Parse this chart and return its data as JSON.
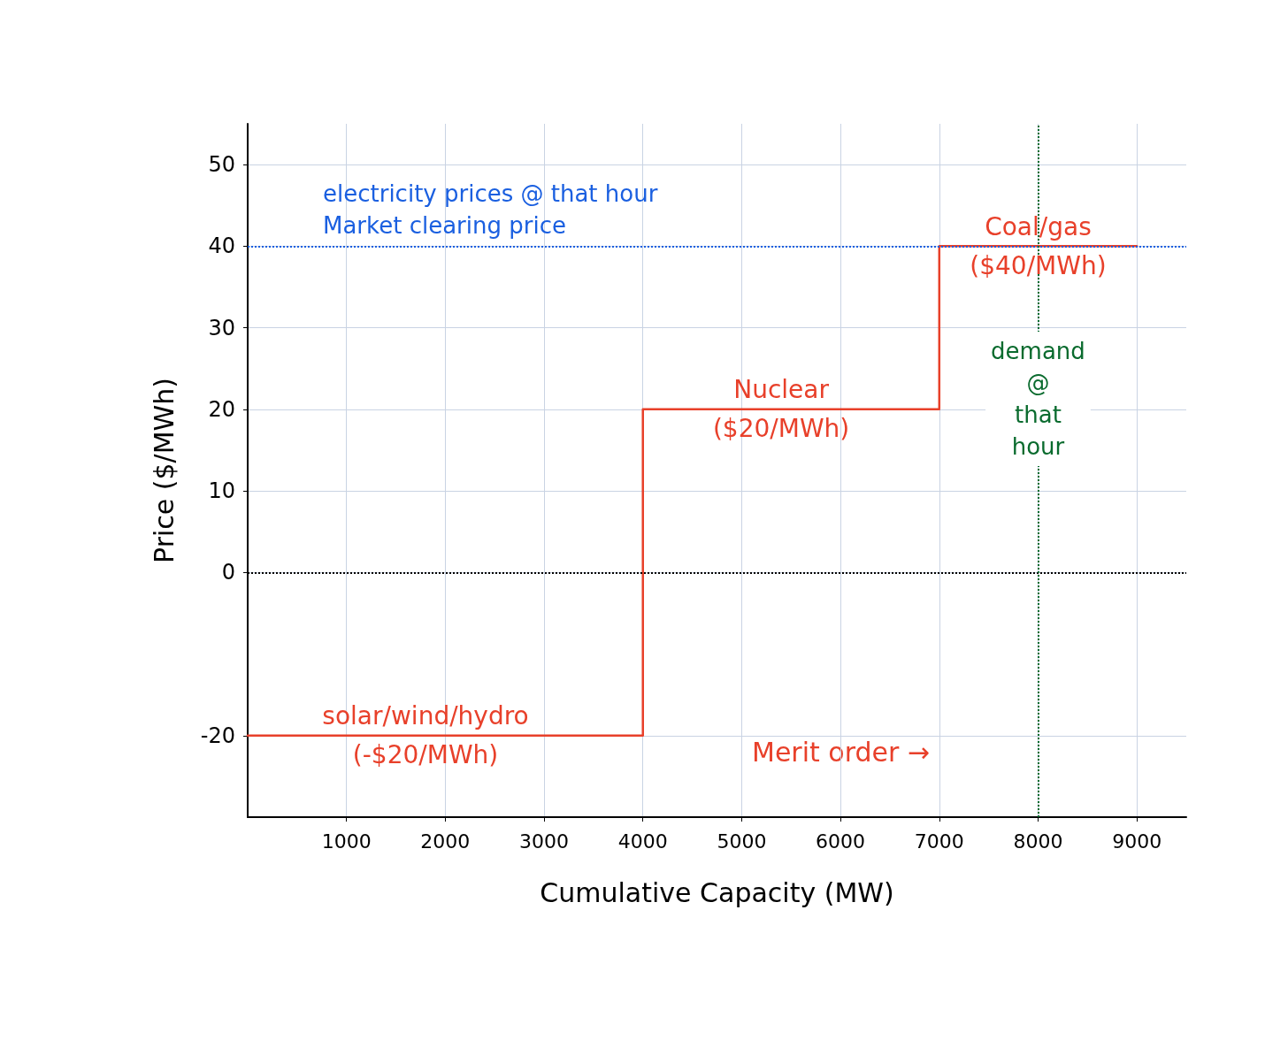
{
  "chart_data": {
    "type": "line",
    "xlabel": "Cumulative Capacity (MW)",
    "ylabel": "Price ($/MWh)",
    "x": [
      0,
      4000,
      4000,
      7000,
      7000,
      9000
    ],
    "values": [
      -20,
      -20,
      20,
      20,
      40,
      40
    ],
    "color": "#e8402a",
    "xlim": [
      0,
      9500
    ],
    "ylim": [
      -30,
      55
    ],
    "xticks": [
      1000,
      2000,
      3000,
      4000,
      5000,
      6000,
      7000,
      8000,
      9000
    ],
    "yticks": [
      -20,
      0,
      10,
      20,
      30,
      40,
      50
    ],
    "grid": true,
    "marker": "none",
    "line_style": "solid",
    "ref_lines": [
      {
        "axis": "y",
        "value": 40,
        "label": "electricity prices @ that hour\nMarket clearing price",
        "color": "#1a5fe0",
        "line_style": "dotted"
      },
      {
        "axis": "y",
        "value": 0,
        "label": null,
        "color": "#000000",
        "line_style": "dotted"
      },
      {
        "axis": "x",
        "value": 8000,
        "label": "demand\n@\nthat\nhour",
        "color": "#0a6b2e",
        "line_style": "dotted"
      }
    ],
    "annotations": [
      {
        "text": "solar/wind/hydro\n(-$20/MWh)",
        "x": 1800,
        "y": -20
      },
      {
        "text": "Nuclear\n($20/MWh)",
        "x": 5400,
        "y": 20
      },
      {
        "text": "Coal/gas\n($40/MWh)",
        "x": 8000,
        "y": 40
      },
      "Merit order →"
    ]
  }
}
